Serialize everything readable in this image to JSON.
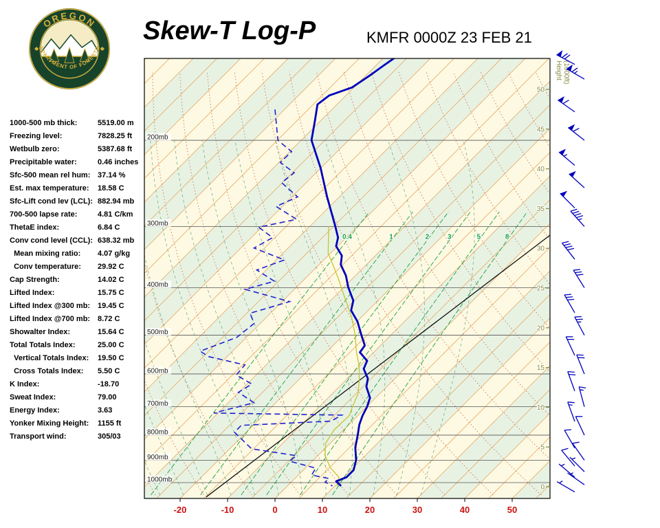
{
  "header": {
    "title": "Skew-T Log-P",
    "station": "KMFR 0000Z 23 FEB 21"
  },
  "logo": {
    "top_text": "OREGON",
    "bottom_text": "DEPARTMENT OF FORESTRY"
  },
  "indices": [
    {
      "label": "1000-500 mb thick:",
      "value": "5519.00 m"
    },
    {
      "label": "Freezing level:",
      "value": "7828.25 ft"
    },
    {
      "label": "Wetbulb zero:",
      "value": "5387.68 ft"
    },
    {
      "label": "Precipitable water:",
      "value": "0.46 inches"
    },
    {
      "label": "Sfc-500 mean rel hum:",
      "value": "37.14 %"
    },
    {
      "label": "Est. max temperature:",
      "value": "18.58 C"
    },
    {
      "label": "Sfc-Lift cond lev (LCL):",
      "value": "882.94 mb"
    },
    {
      "label": "700-500 lapse rate:",
      "value": "4.81 C/km"
    },
    {
      "label": "ThetaE index:",
      "value": "6.84 C"
    },
    {
      "label": "Conv cond level (CCL):",
      "value": "638.32 mb"
    },
    {
      "label": "  Mean mixing ratio:",
      "value": "4.07 g/kg"
    },
    {
      "label": "  Conv temperature:",
      "value": "29.92 C"
    },
    {
      "label": "Cap Strength:",
      "value": "14.02 C"
    },
    {
      "label": "Lifted Index:",
      "value": "15.75 C"
    },
    {
      "label": "Lifted Index @300 mb:",
      "value": "19.45 C"
    },
    {
      "label": "Lifted Index @700 mb:",
      "value": "8.72 C"
    },
    {
      "label": "Showalter Index:",
      "value": "15.64 C"
    },
    {
      "label": "Total Totals Index:",
      "value": "25.00 C"
    },
    {
      "label": "  Vertical Totals Index:",
      "value": "19.50 C"
    },
    {
      "label": "  Cross Totals Index:",
      "value": "5.50 C"
    },
    {
      "label": "K Index:",
      "value": "-18.70"
    },
    {
      "label": "Sweat Index:",
      "value": "79.00"
    },
    {
      "label": "Energy Index:",
      "value": "3.63"
    },
    {
      "label": "Yonker Mixing Height:",
      "value": "1155 ft"
    },
    {
      "label": "Transport wind:",
      "value": "305/03"
    }
  ],
  "chart_data": {
    "type": "skew-t",
    "title": "Skew-T Log-P",
    "station": "KMFR 0000Z 23 FEB 21",
    "x_axis": {
      "ticks": [
        -20,
        -10,
        0,
        10,
        20,
        30,
        40,
        50
      ]
    },
    "pressure_levels": [
      200,
      300,
      400,
      500,
      600,
      700,
      800,
      900,
      1000
    ],
    "pressure_suffix": "mb",
    "height_axis": {
      "label_lines": [
        "Height",
        "(1000ft)"
      ],
      "ticks": [
        0,
        5,
        10,
        15,
        20,
        25,
        30,
        35,
        40,
        45,
        50
      ]
    },
    "mixing_ratio_lines": [
      0.4,
      1,
      2,
      3,
      5,
      8
    ],
    "reference_line": {
      "from_p": 1070,
      "from_t": -14.8,
      "to_p": 312,
      "to_t": 2.5
    },
    "temperature_profile": [
      [
        136,
        -67.7
      ],
      [
        141,
        -68.4
      ],
      [
        147,
        -69.1
      ],
      [
        156,
        -70.4
      ],
      [
        162,
        -73.5
      ],
      [
        169,
        -74.1
      ],
      [
        182,
        -71.3
      ],
      [
        200,
        -67.8
      ],
      [
        228,
        -60.0
      ],
      [
        260,
        -52.8
      ],
      [
        300,
        -44.6
      ],
      [
        316,
        -41.7
      ],
      [
        329,
        -40.3
      ],
      [
        344,
        -37.1
      ],
      [
        359,
        -35.4
      ],
      [
        378,
        -32.0
      ],
      [
        399,
        -29.1
      ],
      [
        425,
        -25.2
      ],
      [
        445,
        -23.6
      ],
      [
        469,
        -19.9
      ],
      [
        500,
        -16.2
      ],
      [
        525,
        -13.3
      ],
      [
        542,
        -12.9
      ],
      [
        564,
        -9.6
      ],
      [
        586,
        -8.6
      ],
      [
        613,
        -5.7
      ],
      [
        637,
        -4.3
      ],
      [
        671,
        -1.2
      ],
      [
        700,
        0.1
      ],
      [
        730,
        1.0
      ],
      [
        761,
        2.2
      ],
      [
        800,
        4.1
      ],
      [
        848,
        6.2
      ],
      [
        899,
        9.0
      ],
      [
        943,
        10.6
      ],
      [
        975,
        10.6
      ],
      [
        994,
        9.3
      ],
      [
        1016,
        11.3
      ]
    ],
    "dewpoint_profile": [
      [
        173,
        -82.0
      ],
      [
        200,
        -74.9
      ],
      [
        211,
        -69.6
      ],
      [
        222,
        -69.7
      ],
      [
        233,
        -64.6
      ],
      [
        244,
        -65.2
      ],
      [
        261,
        -58.8
      ],
      [
        273,
        -61.3
      ],
      [
        290,
        -54.3
      ],
      [
        301,
        -60.6
      ],
      [
        316,
        -55.5
      ],
      [
        332,
        -57.2
      ],
      [
        351,
        -48.3
      ],
      [
        368,
        -52.0
      ],
      [
        388,
        -45.9
      ],
      [
        403,
        -50.4
      ],
      [
        427,
        -38.4
      ],
      [
        451,
        -44.3
      ],
      [
        473,
        -41.3
      ],
      [
        505,
        -42.0
      ],
      [
        539,
        -46.8
      ],
      [
        553,
        -43.9
      ],
      [
        575,
        -34.5
      ],
      [
        603,
        -34.2
      ],
      [
        629,
        -29.0
      ],
      [
        654,
        -30.1
      ],
      [
        687,
        -24.6
      ],
      [
        721,
        -30.9
      ],
      [
        728,
        -3.5
      ],
      [
        749,
        -4.5
      ],
      [
        764,
        -22.5
      ],
      [
        789,
        -22.5
      ],
      [
        820,
        -19.0
      ],
      [
        853,
        -15.4
      ],
      [
        881,
        -4.5
      ],
      [
        904,
        -4.8
      ],
      [
        934,
        2.2
      ],
      [
        965,
        2.8
      ],
      [
        981,
        7.2
      ],
      [
        997,
        7.1
      ],
      [
        1016,
        9.5
      ]
    ],
    "wetbulb_profile": [
      [
        1016,
        10.5
      ],
      [
        975,
        9.0
      ],
      [
        930,
        5.0
      ],
      [
        880,
        1.5
      ],
      [
        830,
        -1.0
      ],
      [
        780,
        -2.0
      ],
      [
        730,
        -1.8
      ],
      [
        700,
        -3.0
      ],
      [
        660,
        -4.5
      ],
      [
        620,
        -7.0
      ],
      [
        580,
        -10.0
      ],
      [
        540,
        -13.8
      ],
      [
        500,
        -17.5
      ],
      [
        460,
        -22.0
      ],
      [
        420,
        -27.5
      ],
      [
        380,
        -33.5
      ],
      [
        340,
        -40.5
      ],
      [
        300,
        -46.0
      ]
    ],
    "wind_barbs": [
      [
        1045,
        300,
        3
      ],
      [
        1010,
        305,
        3
      ],
      [
        975,
        310,
        5
      ],
      [
        950,
        315,
        5
      ],
      [
        925,
        320,
        8
      ],
      [
        900,
        325,
        10
      ],
      [
        850,
        330,
        10
      ],
      [
        800,
        335,
        12
      ],
      [
        750,
        340,
        15
      ],
      [
        700,
        345,
        15
      ],
      [
        650,
        340,
        18
      ],
      [
        600,
        338,
        20
      ],
      [
        550,
        335,
        22
      ],
      [
        500,
        332,
        25
      ],
      [
        450,
        330,
        28
      ],
      [
        400,
        328,
        32
      ],
      [
        350,
        322,
        38
      ],
      [
        300,
        318,
        45
      ],
      [
        275,
        315,
        48
      ],
      [
        250,
        312,
        52
      ],
      [
        225,
        310,
        55
      ],
      [
        200,
        308,
        58
      ],
      [
        175,
        305,
        60
      ],
      [
        150,
        300,
        65
      ],
      [
        140,
        298,
        68
      ]
    ],
    "colors": {
      "band_a": "#fdf9e3",
      "band_b": "#e7f2e3",
      "isotherm": "#e8a050",
      "dry_adiabat": "#cc6644",
      "moist_adiabat": "#64a878",
      "mixing_ratio": "#18a040",
      "pressure_line": "#555555",
      "pressure_label": "#222222",
      "temperature": "#0000bb",
      "dewpoint": "#2020cc",
      "wetbulb": "#c6c630",
      "reference": "#111111",
      "x_label": "#cc1111",
      "height_axis": "#8a8a40",
      "wind": "#0000bb",
      "border": "#000000"
    }
  }
}
